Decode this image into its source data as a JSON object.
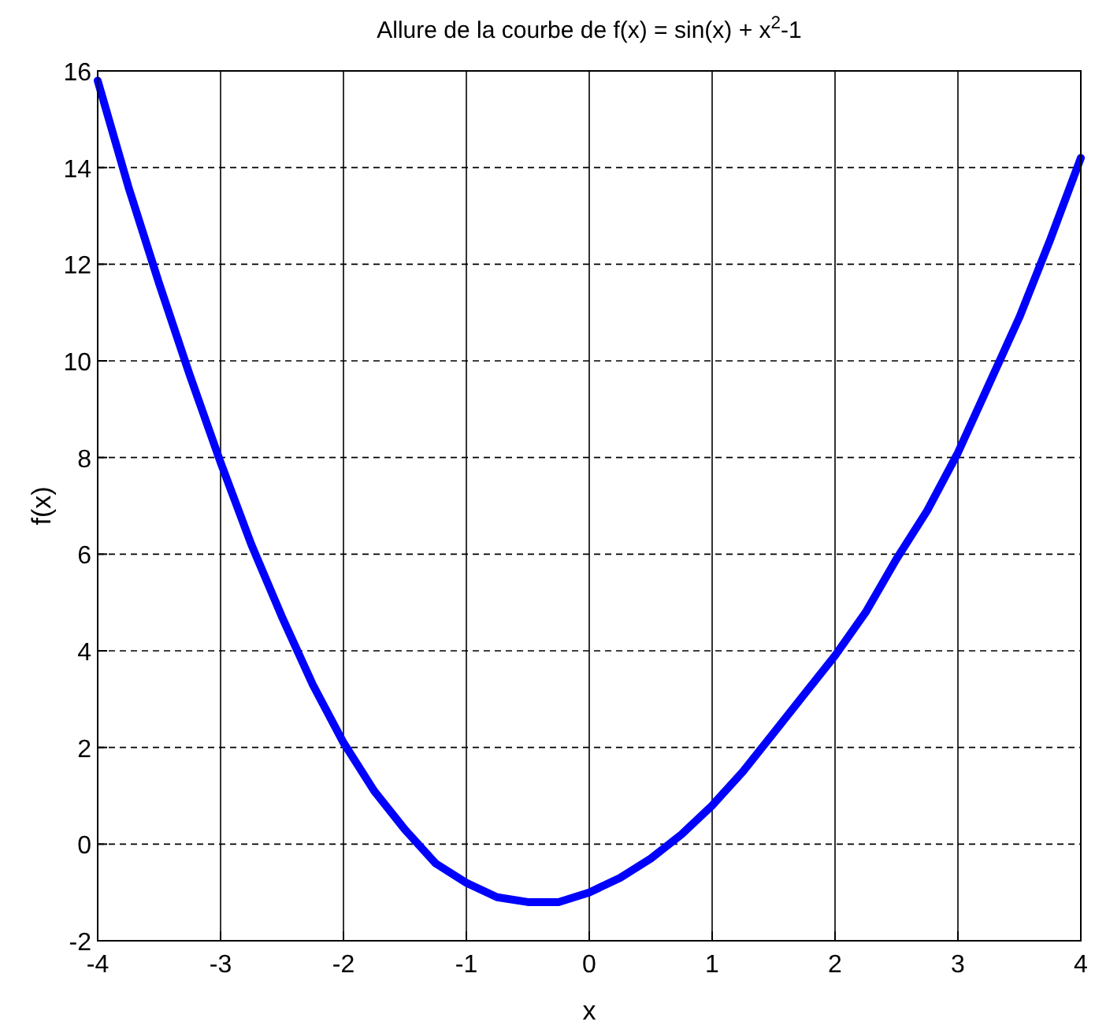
{
  "chart_data": {
    "type": "line",
    "title": "Allure de la courbe de f(x) = sin(x) + x$^{2}$-1",
    "xlabel": "x",
    "ylabel": "f(x)",
    "x": [
      -4,
      -3.75,
      -3.5,
      -3.25,
      -3,
      -2.75,
      -2.5,
      -2.25,
      -2,
      -1.75,
      -1.5,
      -1.25,
      -1,
      -0.75,
      -0.5,
      -0.25,
      0,
      0.25,
      0.5,
      0.75,
      1,
      1.25,
      1.5,
      1.75,
      2,
      2.25,
      2.5,
      2.75,
      3,
      3.25,
      3.5,
      3.75,
      4
    ],
    "series": [
      {
        "color": "#0000ff",
        "values": [
          15.8,
          13.6,
          11.6,
          9.7,
          7.9,
          6.2,
          4.7,
          3.3,
          2.1,
          1.1,
          0.3,
          -0.4,
          -0.8,
          -1.1,
          -1.2,
          -1.2,
          -1.0,
          -0.7,
          -0.3,
          0.2,
          0.8,
          1.5,
          2.3,
          3.1,
          3.9,
          4.8,
          5.9,
          6.9,
          8.1,
          9.5,
          10.9,
          12.5,
          14.2
        ]
      }
    ],
    "xlim": [
      -4,
      4
    ],
    "xticks": [
      -4,
      -3,
      -2,
      -1,
      0,
      1,
      2,
      3,
      4
    ],
    "ylim": [
      -2,
      16
    ],
    "yticks": [
      -2,
      0,
      2,
      4,
      6,
      8,
      10,
      12,
      14,
      16
    ],
    "grid": true,
    "marker": "none",
    "line_style": "solid"
  }
}
